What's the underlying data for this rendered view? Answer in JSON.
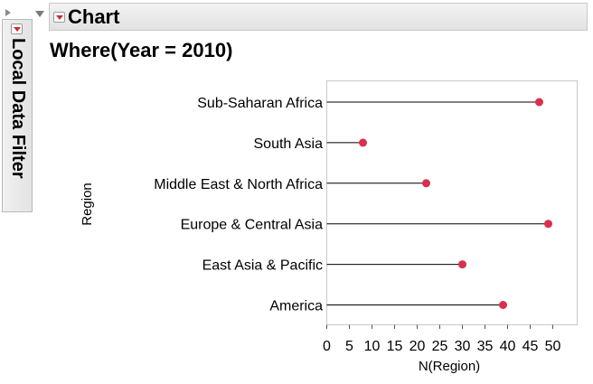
{
  "local_filter": {
    "label": "Local Data Filter"
  },
  "outline": {
    "title": "Chart"
  },
  "where_clause": "Where(Year = 2010)",
  "chart_data": {
    "type": "scatter",
    "title": "",
    "xlabel": "N(Region)",
    "ylabel": "Region",
    "xlim": [
      0,
      53
    ],
    "xticks": [
      0,
      5,
      10,
      15,
      20,
      25,
      30,
      35,
      40,
      45,
      50
    ],
    "categories": [
      "Sub-Saharan Africa",
      "South Asia",
      "Middle East & North Africa",
      "Europe & Central Asia",
      "East Asia & Pacific",
      "America"
    ],
    "series": [
      {
        "values": [
          47,
          8,
          22,
          49,
          30,
          39
        ]
      }
    ],
    "marker_color": "#d9304f",
    "needle_lines": true,
    "grid": false
  }
}
